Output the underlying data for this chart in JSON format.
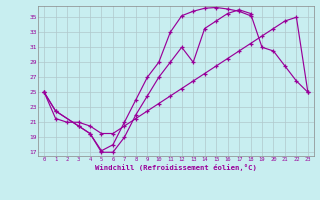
{
  "xlabel": "Windchill (Refroidissement éolien,°C)",
  "ylabel": "",
  "background_color": "#c8eef0",
  "line_color": "#990099",
  "grid_color": "#b0c8cc",
  "xlim": [
    -0.5,
    23.5
  ],
  "ylim": [
    16.5,
    36.5
  ],
  "yticks": [
    17,
    19,
    21,
    23,
    25,
    27,
    29,
    31,
    33,
    35
  ],
  "xticks": [
    0,
    1,
    2,
    3,
    4,
    5,
    6,
    7,
    8,
    9,
    10,
    11,
    12,
    13,
    14,
    15,
    16,
    17,
    18,
    19,
    20,
    21,
    22,
    23
  ],
  "line1_x": [
    0,
    1,
    3,
    4,
    5,
    6,
    7,
    8,
    9,
    10,
    11,
    12,
    13,
    14,
    15,
    16,
    17,
    18
  ],
  "line1_y": [
    25,
    22.5,
    20.5,
    19.5,
    17.2,
    18.0,
    21.0,
    24.0,
    27.0,
    29.0,
    33.0,
    35.2,
    35.8,
    36.2,
    36.3,
    36.1,
    35.8,
    35.2
  ],
  "line2_x": [
    0,
    1,
    3,
    4,
    5,
    6,
    7,
    8,
    9,
    10,
    11,
    12,
    13,
    14,
    15,
    16,
    17,
    18,
    19,
    20,
    21,
    22,
    23
  ],
  "line2_y": [
    25,
    22.5,
    20.5,
    19.5,
    17.0,
    17.0,
    19.0,
    22.0,
    24.5,
    27.0,
    29.0,
    31.0,
    29.0,
    33.5,
    34.5,
    35.5,
    36.0,
    35.5,
    31.0,
    30.5,
    28.5,
    26.5,
    25.0
  ],
  "line3_x": [
    0,
    1,
    2,
    3,
    4,
    5,
    6,
    7,
    8,
    9,
    10,
    11,
    12,
    13,
    14,
    15,
    16,
    17,
    18,
    19,
    20,
    21,
    22,
    23
  ],
  "line3_y": [
    25,
    21.5,
    21.0,
    21.0,
    20.5,
    19.5,
    19.5,
    20.5,
    21.5,
    22.5,
    23.5,
    24.5,
    25.5,
    26.5,
    27.5,
    28.5,
    29.5,
    30.5,
    31.5,
    32.5,
    33.5,
    34.5,
    35.0,
    25.0
  ]
}
